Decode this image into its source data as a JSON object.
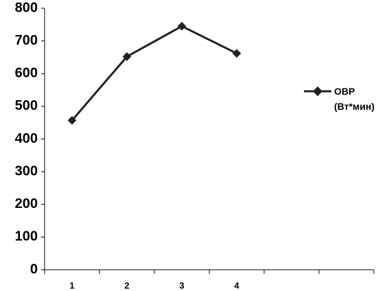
{
  "chart_data": {
    "type": "line",
    "categories": [
      "1",
      "2",
      "3",
      "4",
      null,
      null
    ],
    "series": [
      {
        "name": "ОВР (Вт*мин)",
        "color": "#222222",
        "values": [
          457,
          652,
          745,
          662,
          null,
          null
        ]
      }
    ],
    "ylim": [
      0,
      800
    ],
    "yticks": [
      0,
      100,
      200,
      300,
      400,
      500,
      600,
      700,
      800
    ],
    "grid": false,
    "legend": "right"
  }
}
